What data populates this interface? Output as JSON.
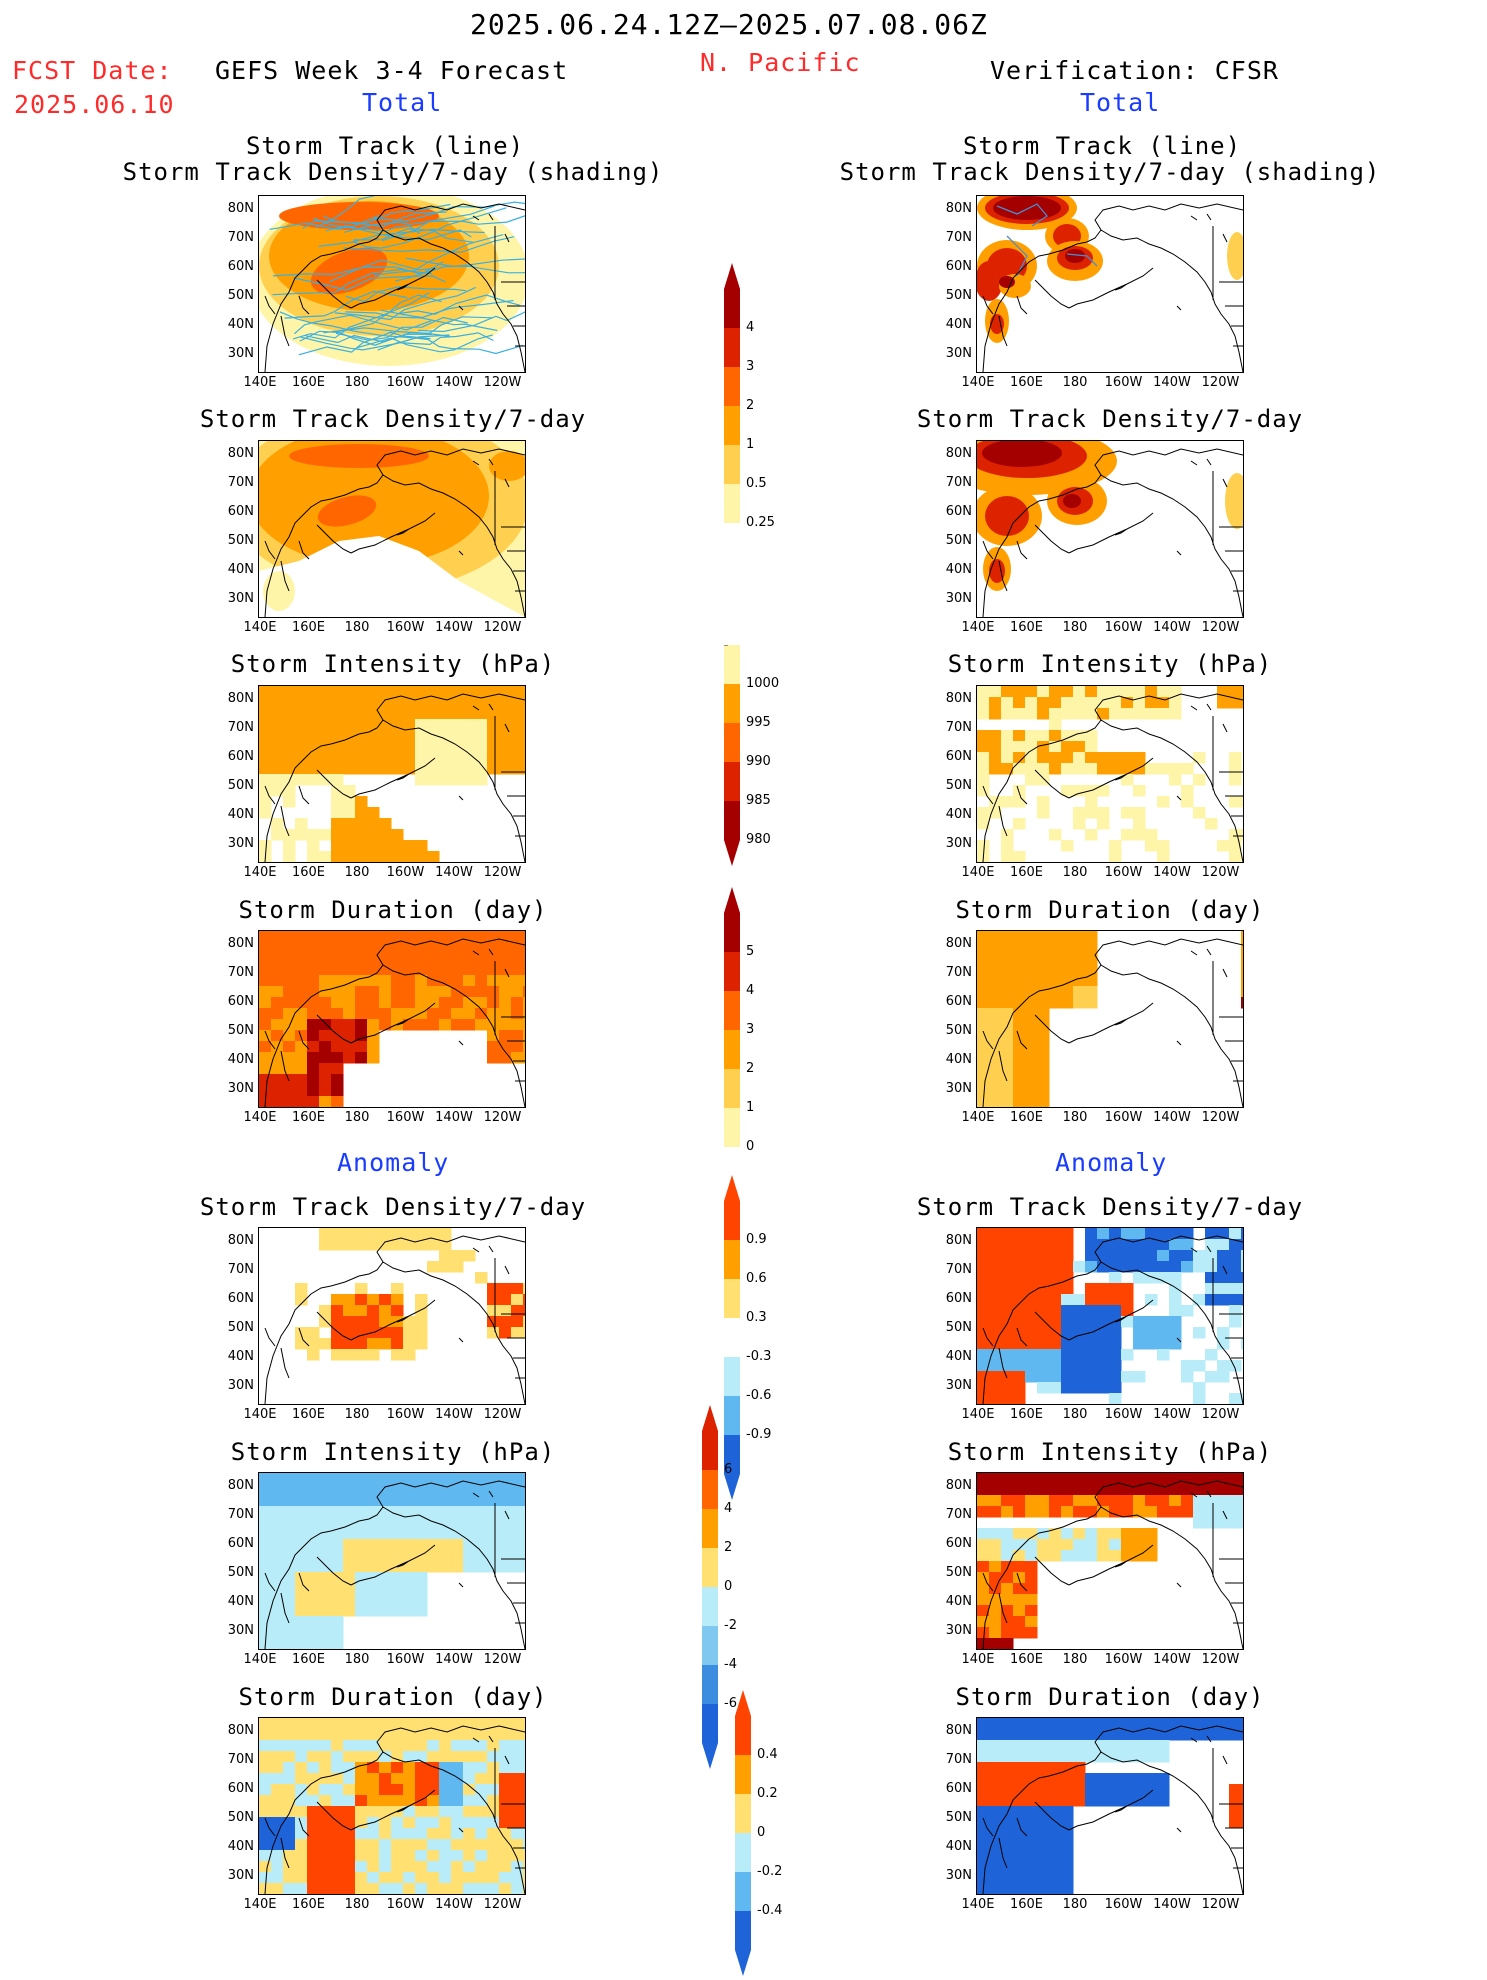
{
  "header": {
    "date_range": "2025.06.24.12Z–2025.07.08.06Z",
    "fcst_label": "FCST Date:",
    "fcst_date": "2025.06.10",
    "model_title": "GEFS Week 3-4 Forecast",
    "region": "N. Pacific",
    "verification": "Verification: CFSR"
  },
  "sections": {
    "total_left": "Total",
    "total_right": "Total",
    "anomaly_left": "Anomaly",
    "anomaly_right": "Anomaly"
  },
  "panel_titles": {
    "track_line": "Storm Track (line)",
    "track_shading": "Storm Track Density/7-day (shading)",
    "track_density": "Storm Track Density/7-day",
    "intensity": "Storm Intensity (hPa)",
    "duration": "Storm Duration (day)"
  },
  "axes": {
    "lat_labels": [
      "80N",
      "70N",
      "60N",
      "50N",
      "40N",
      "30N"
    ],
    "lon_labels": [
      "140E",
      "160E",
      "180",
      "160W",
      "140W",
      "120W"
    ]
  },
  "colorbars": {
    "density_total": {
      "labels": [
        "4",
        "3",
        "2",
        "1",
        "0.5",
        "0.25"
      ],
      "colors": [
        "#a50000",
        "#dd2200",
        "#ff6600",
        "#ffa000",
        "#ffd050",
        "#fff5a8"
      ]
    },
    "intensity_total": {
      "labels": [
        "1000",
        "995",
        "990",
        "985",
        "980"
      ],
      "colors": [
        "#fff5a8",
        "#ffa000",
        "#ff6600",
        "#dd2200",
        "#a50000"
      ]
    },
    "duration_total": {
      "labels": [
        "5",
        "4",
        "3",
        "2",
        "1",
        "0"
      ],
      "colors": [
        "#a50000",
        "#dd2200",
        "#ff6600",
        "#ffa000",
        "#ffd050",
        "#fff5a8"
      ]
    },
    "density_anom": {
      "labels": [
        "0.9",
        "0.6",
        "0.3",
        "-0.3",
        "-0.6",
        "-0.9"
      ],
      "colors": [
        "#ff4400",
        "#ffa000",
        "#ffe070",
        "#ffffff",
        "#b8ecf8",
        "#60b8f0",
        "#1e64d8"
      ]
    },
    "intensity_anom": {
      "labels": [
        "6",
        "4",
        "2",
        "0",
        "-2",
        "-4",
        "-6"
      ],
      "colors": [
        "#dd2200",
        "#ff6600",
        "#ffa000",
        "#ffe070",
        "#b8ecf8",
        "#80c8f0",
        "#3c8ce0",
        "#1e64d8"
      ]
    },
    "duration_anom": {
      "labels": [
        "0.4",
        "0.2",
        "0",
        "-0.2",
        "-0.4"
      ],
      "colors": [
        "#ff4400",
        "#ffa000",
        "#ffe070",
        "#b8ecf8",
        "#60b8f0",
        "#1e64d8"
      ]
    }
  }
}
